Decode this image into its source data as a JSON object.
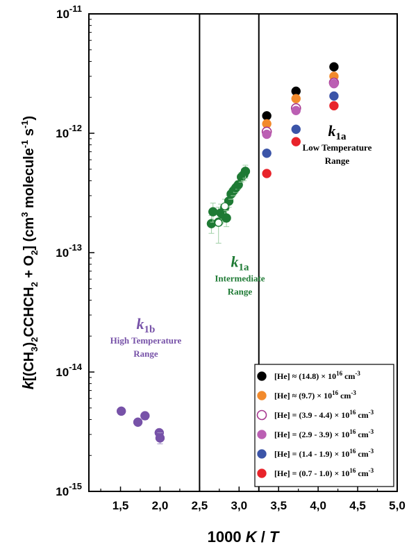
{
  "chart_data": {
    "type": "scatter",
    "title": "",
    "xlabel": "1000 K / T",
    "ylabel": "k[(CH3)2CCHCH2 + O2] (cm3 molecule-1 s-1)",
    "xlim": [
      1.1,
      5.0
    ],
    "ylim": [
      1e-15,
      1e-11
    ],
    "yscale": "log",
    "x_ticks": [
      "1,5",
      "2,0",
      "2,5",
      "3,0",
      "3,5",
      "4,0",
      "4,5",
      "5,0"
    ],
    "y_ticks": [
      "10-15",
      "10-14",
      "10-13",
      "10-12",
      "10-11"
    ],
    "region_dividers_x": [
      2.5,
      3.25
    ],
    "annotations": [
      {
        "symbol": "k",
        "subscript": "1b",
        "line1": "High Temperature",
        "line2": "Range",
        "color": "#7752a8"
      },
      {
        "symbol": "k",
        "subscript": "1a",
        "line1": "Intermediate",
        "line2": "Range",
        "color": "#1e7a34"
      },
      {
        "symbol": "k",
        "subscript": "1a",
        "line1": "Low Temperature",
        "line2": "Range",
        "color": "#000000"
      }
    ],
    "series": [
      {
        "name": "k1b",
        "color": "#7752a8",
        "filled": true,
        "in_legend": false,
        "points": [
          {
            "x": 1.51,
            "y": 4.7e-15,
            "err": 3e-16
          },
          {
            "x": 1.72,
            "y": 3.8e-15,
            "err": 2e-16
          },
          {
            "x": 1.81,
            "y": 4.3e-15,
            "err": 3e-16
          },
          {
            "x": 1.99,
            "y": 3.1e-15,
            "err": 2e-16
          },
          {
            "x": 2.0,
            "y": 2.8e-15,
            "err": 3e-16
          }
        ]
      },
      {
        "name": "k1a intermediate",
        "color": "#1e7a34",
        "filled": true,
        "in_legend": false,
        "points": [
          {
            "x": 2.65,
            "y": 1.75e-13,
            "err": 3e-14
          },
          {
            "x": 2.67,
            "y": 2.2e-13,
            "err": 4e-14
          },
          {
            "x": 2.74,
            "y": 1.8e-13,
            "err": 6e-14
          },
          {
            "x": 2.77,
            "y": 2.15e-13,
            "err": 4e-14
          },
          {
            "x": 2.79,
            "y": 2.1e-13,
            "err": 3e-14
          },
          {
            "x": 2.82,
            "y": 2.4e-13,
            "err": 4e-14
          },
          {
            "x": 2.84,
            "y": 1.95e-13,
            "err": 3e-14
          },
          {
            "x": 2.87,
            "y": 2.7e-13,
            "err": 3e-14
          },
          {
            "x": 2.9,
            "y": 3.1e-13,
            "err": 3e-14
          },
          {
            "x": 2.93,
            "y": 3.3e-13,
            "err": 3e-14
          },
          {
            "x": 2.96,
            "y": 3.5e-13,
            "err": 3e-14
          },
          {
            "x": 2.99,
            "y": 3.7e-13,
            "err": 3e-14
          },
          {
            "x": 3.03,
            "y": 4.3e-13,
            "err": 4e-14
          },
          {
            "x": 3.06,
            "y": 4.5e-13,
            "err": 5e-14
          },
          {
            "x": 3.08,
            "y": 4.8e-13,
            "err": 6e-14
          }
        ]
      },
      {
        "name": "[He] ≈ (14.8) × 10<sup>16</sup> cm<sup>-3</sup>",
        "color": "#000000",
        "filled": true,
        "in_legend": true,
        "points": [
          {
            "x": 3.35,
            "y": 1.4e-12
          },
          {
            "x": 3.72,
            "y": 2.25e-12
          },
          {
            "x": 4.2,
            "y": 3.6e-12
          }
        ]
      },
      {
        "name": "[He] ≈ (9.7) × 10<sup>16</sup> cm<sup>-3</sup>",
        "color": "#f28a2c",
        "filled": true,
        "in_legend": true,
        "points": [
          {
            "x": 3.35,
            "y": 1.2e-12
          },
          {
            "x": 3.72,
            "y": 1.95e-12
          },
          {
            "x": 4.2,
            "y": 3e-12
          }
        ]
      },
      {
        "name": "[He] = (3.9 - 4.4) × 10<sup>16</sup> cm<sup>-3</sup>",
        "color": "#a6378f",
        "filled": false,
        "in_legend": true,
        "points": [
          {
            "x": 3.35,
            "y": 1.03e-12
          },
          {
            "x": 3.72,
            "y": 1.62e-12
          },
          {
            "x": 4.2,
            "y": 2.65e-12
          }
        ]
      },
      {
        "name": "[He] = (2.9 - 3.9) × 10<sup>16</sup> cm<sup>-3</sup>",
        "color": "#bb5fb3",
        "filled": true,
        "in_legend": true,
        "points": [
          {
            "x": 3.35,
            "y": 9.8e-13
          },
          {
            "x": 3.72,
            "y": 1.55e-12
          },
          {
            "x": 4.2,
            "y": 2.6e-12
          }
        ]
      },
      {
        "name": "[He] = (1.4 - 1.9) × 10<sup>16</sup> cm<sup>-3</sup>",
        "color": "#3b54a8",
        "filled": true,
        "in_legend": true,
        "points": [
          {
            "x": 3.35,
            "y": 6.8e-13
          },
          {
            "x": 3.72,
            "y": 1.08e-12
          },
          {
            "x": 4.2,
            "y": 2.05e-12
          }
        ]
      },
      {
        "name": "[He] = (0.7 - 1.0) × 10<sup>16</sup> cm<sup>-3</sup>",
        "color": "#e8232a",
        "filled": true,
        "in_legend": true,
        "points": [
          {
            "x": 3.35,
            "y": 4.6e-13
          },
          {
            "x": 3.72,
            "y": 8.5e-13
          },
          {
            "x": 4.2,
            "y": 1.7e-12
          }
        ]
      }
    ],
    "white_markers": [
      {
        "x": 2.74,
        "y": 1.78e-13
      },
      {
        "x": 2.82,
        "y": 2.45e-13
      }
    ]
  }
}
